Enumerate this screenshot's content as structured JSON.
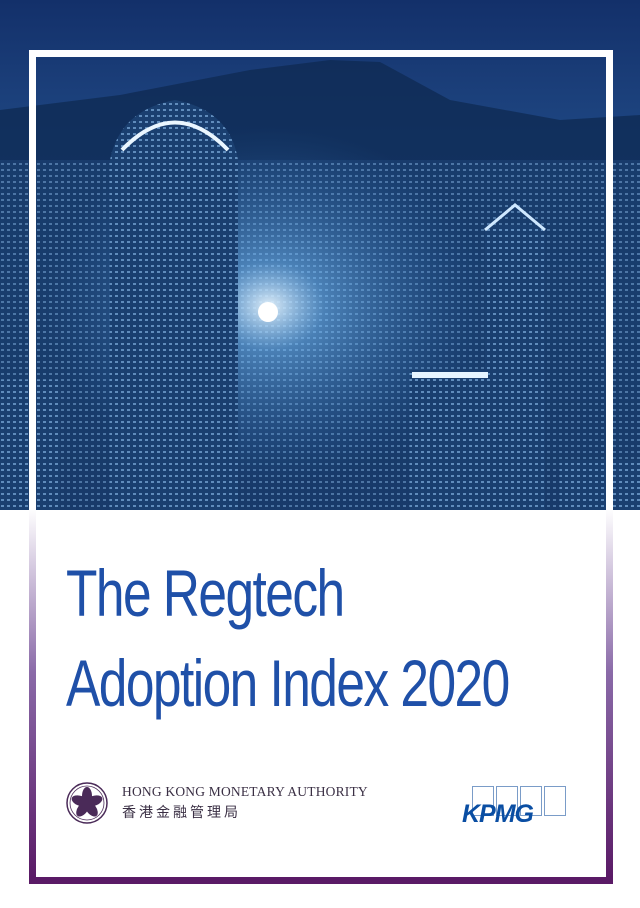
{
  "cover": {
    "title_line1": "The Regtech",
    "title_line2": "Adoption Index 2020",
    "hkma_name_en": "HONG KONG MONETARY AUTHORITY",
    "hkma_name_zh": "香港金融管理局",
    "kpmg_logo": "KPMG",
    "photo": "hong-kong-skyline-night"
  },
  "colors": {
    "title": "#1f50a8",
    "frame_bottom": "#5a1a66",
    "kpmg": "#0a4ea3"
  }
}
